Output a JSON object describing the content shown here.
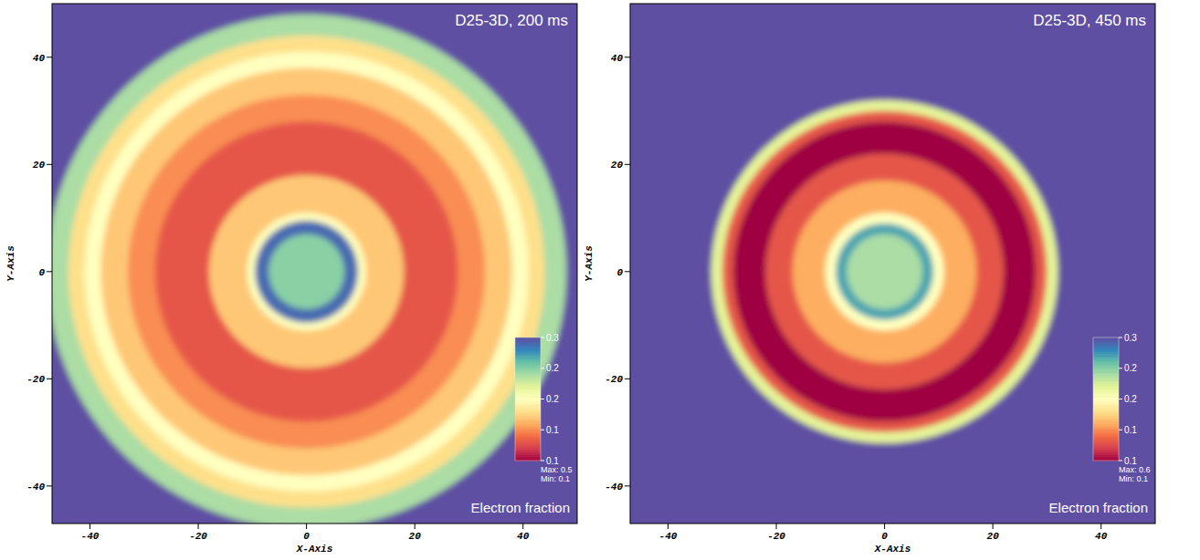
{
  "chart_data": [
    {
      "type": "heatmap",
      "title": "D25-3D, 200 ms",
      "x_label": "X-Axis",
      "y_label": "Y-Axis",
      "xlim": [
        -47,
        50
      ],
      "ylim": [
        -47,
        50
      ],
      "xticks": [
        -40,
        -20,
        0,
        20,
        40
      ],
      "yticks": [
        -40,
        -20,
        0,
        20,
        40
      ],
      "rings": {
        "outer_radius": [
          80,
          48,
          44,
          41,
          38,
          33,
          28,
          18,
          11,
          9.5,
          7
        ],
        "values": [
          0.5,
          0.24,
          0.18,
          0.2,
          0.17,
          0.15,
          0.13,
          0.17,
          0.2,
          0.29,
          0.25
        ]
      },
      "colorbar": {
        "label": "Electron fraction",
        "range": [
          0.1,
          0.3
        ],
        "ticks": [
          0.3,
          {
            "value": 0.25,
            "label": "0.2"
          },
          0.2,
          {
            "value": 0.15,
            "label": "0.1"
          },
          0.1
        ],
        "max_label": "Max: 0.5",
        "min_label": "Min: 0.1"
      }
    },
    {
      "type": "heatmap",
      "title": "D25-3D, 450 ms",
      "x_label": "X-Axis",
      "y_label": "Y-Axis",
      "xlim": [
        -47,
        50
      ],
      "ylim": [
        -47,
        50
      ],
      "xticks": [
        -40,
        -20,
        0,
        20,
        40
      ],
      "yticks": [
        -40,
        -20,
        0,
        20,
        40
      ],
      "rings": {
        "outer_radius": [
          80,
          32,
          30,
          28,
          22,
          17,
          11,
          9,
          7
        ],
        "values": [
          0.6,
          0.22,
          0.13,
          0.1,
          0.13,
          0.16,
          0.2,
          0.27,
          0.24
        ]
      },
      "colorbar": {
        "label": "Electron fraction",
        "range": [
          0.1,
          0.3
        ],
        "ticks": [
          0.3,
          {
            "value": 0.25,
            "label": "0.2"
          },
          0.2,
          {
            "value": 0.15,
            "label": "0.1"
          },
          0.1
        ],
        "max_label": "Max: 0.6",
        "min_label": "Min: 0.1"
      }
    }
  ]
}
